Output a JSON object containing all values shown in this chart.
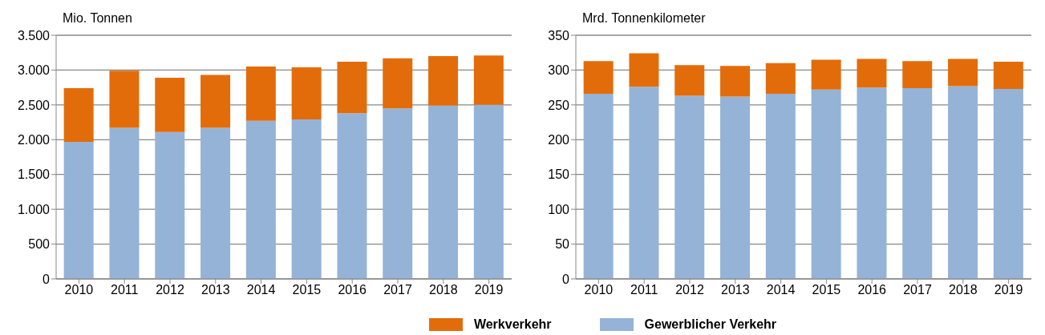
{
  "chart_data": [
    {
      "type": "bar",
      "stacked": true,
      "ylabel": "Mio. Tonnen",
      "categories": [
        "2010",
        "2011",
        "2012",
        "2013",
        "2014",
        "2015",
        "2016",
        "2017",
        "2018",
        "2019"
      ],
      "series": [
        {
          "name": "Gewerblicher Verkehr",
          "color": "#95b3d7",
          "values": [
            1970,
            2170,
            2110,
            2170,
            2270,
            2290,
            2380,
            2450,
            2490,
            2500
          ]
        },
        {
          "name": "Werkverkehr",
          "color": "#e36c0a",
          "values": [
            770,
            820,
            780,
            760,
            780,
            750,
            740,
            720,
            710,
            710
          ]
        }
      ],
      "ylim": [
        0,
        3500
      ],
      "yticks": [
        0,
        500,
        {
          "value": 1000,
          "label": "1.000"
        },
        {
          "value": 1500,
          "label": "1.500"
        },
        {
          "value": 2000,
          "label": "2.000"
        },
        {
          "value": 2500,
          "label": "2.500"
        },
        {
          "value": 3000,
          "label": "3.000"
        },
        {
          "value": 3500,
          "label": "3.500"
        }
      ],
      "grid": "y",
      "legend": "bottom"
    },
    {
      "type": "bar",
      "stacked": true,
      "ylabel": "Mrd. Tonnenkilometer",
      "categories": [
        "2010",
        "2011",
        "2012",
        "2013",
        "2014",
        "2015",
        "2016",
        "2017",
        "2018",
        "2019"
      ],
      "series": [
        {
          "name": "Gewerblicher Verkehr",
          "color": "#95b3d7",
          "values": [
            266,
            276,
            263,
            262,
            266,
            272,
            275,
            274,
            277,
            273
          ]
        },
        {
          "name": "Werkverkehr",
          "color": "#e36c0a",
          "values": [
            47,
            48,
            44,
            44,
            44,
            43,
            41,
            39,
            39,
            39
          ]
        }
      ],
      "ylim": [
        0,
        350
      ],
      "yticks": [
        0,
        50,
        100,
        150,
        200,
        250,
        300,
        350
      ],
      "grid": "y",
      "legend": "bottom"
    }
  ]
}
